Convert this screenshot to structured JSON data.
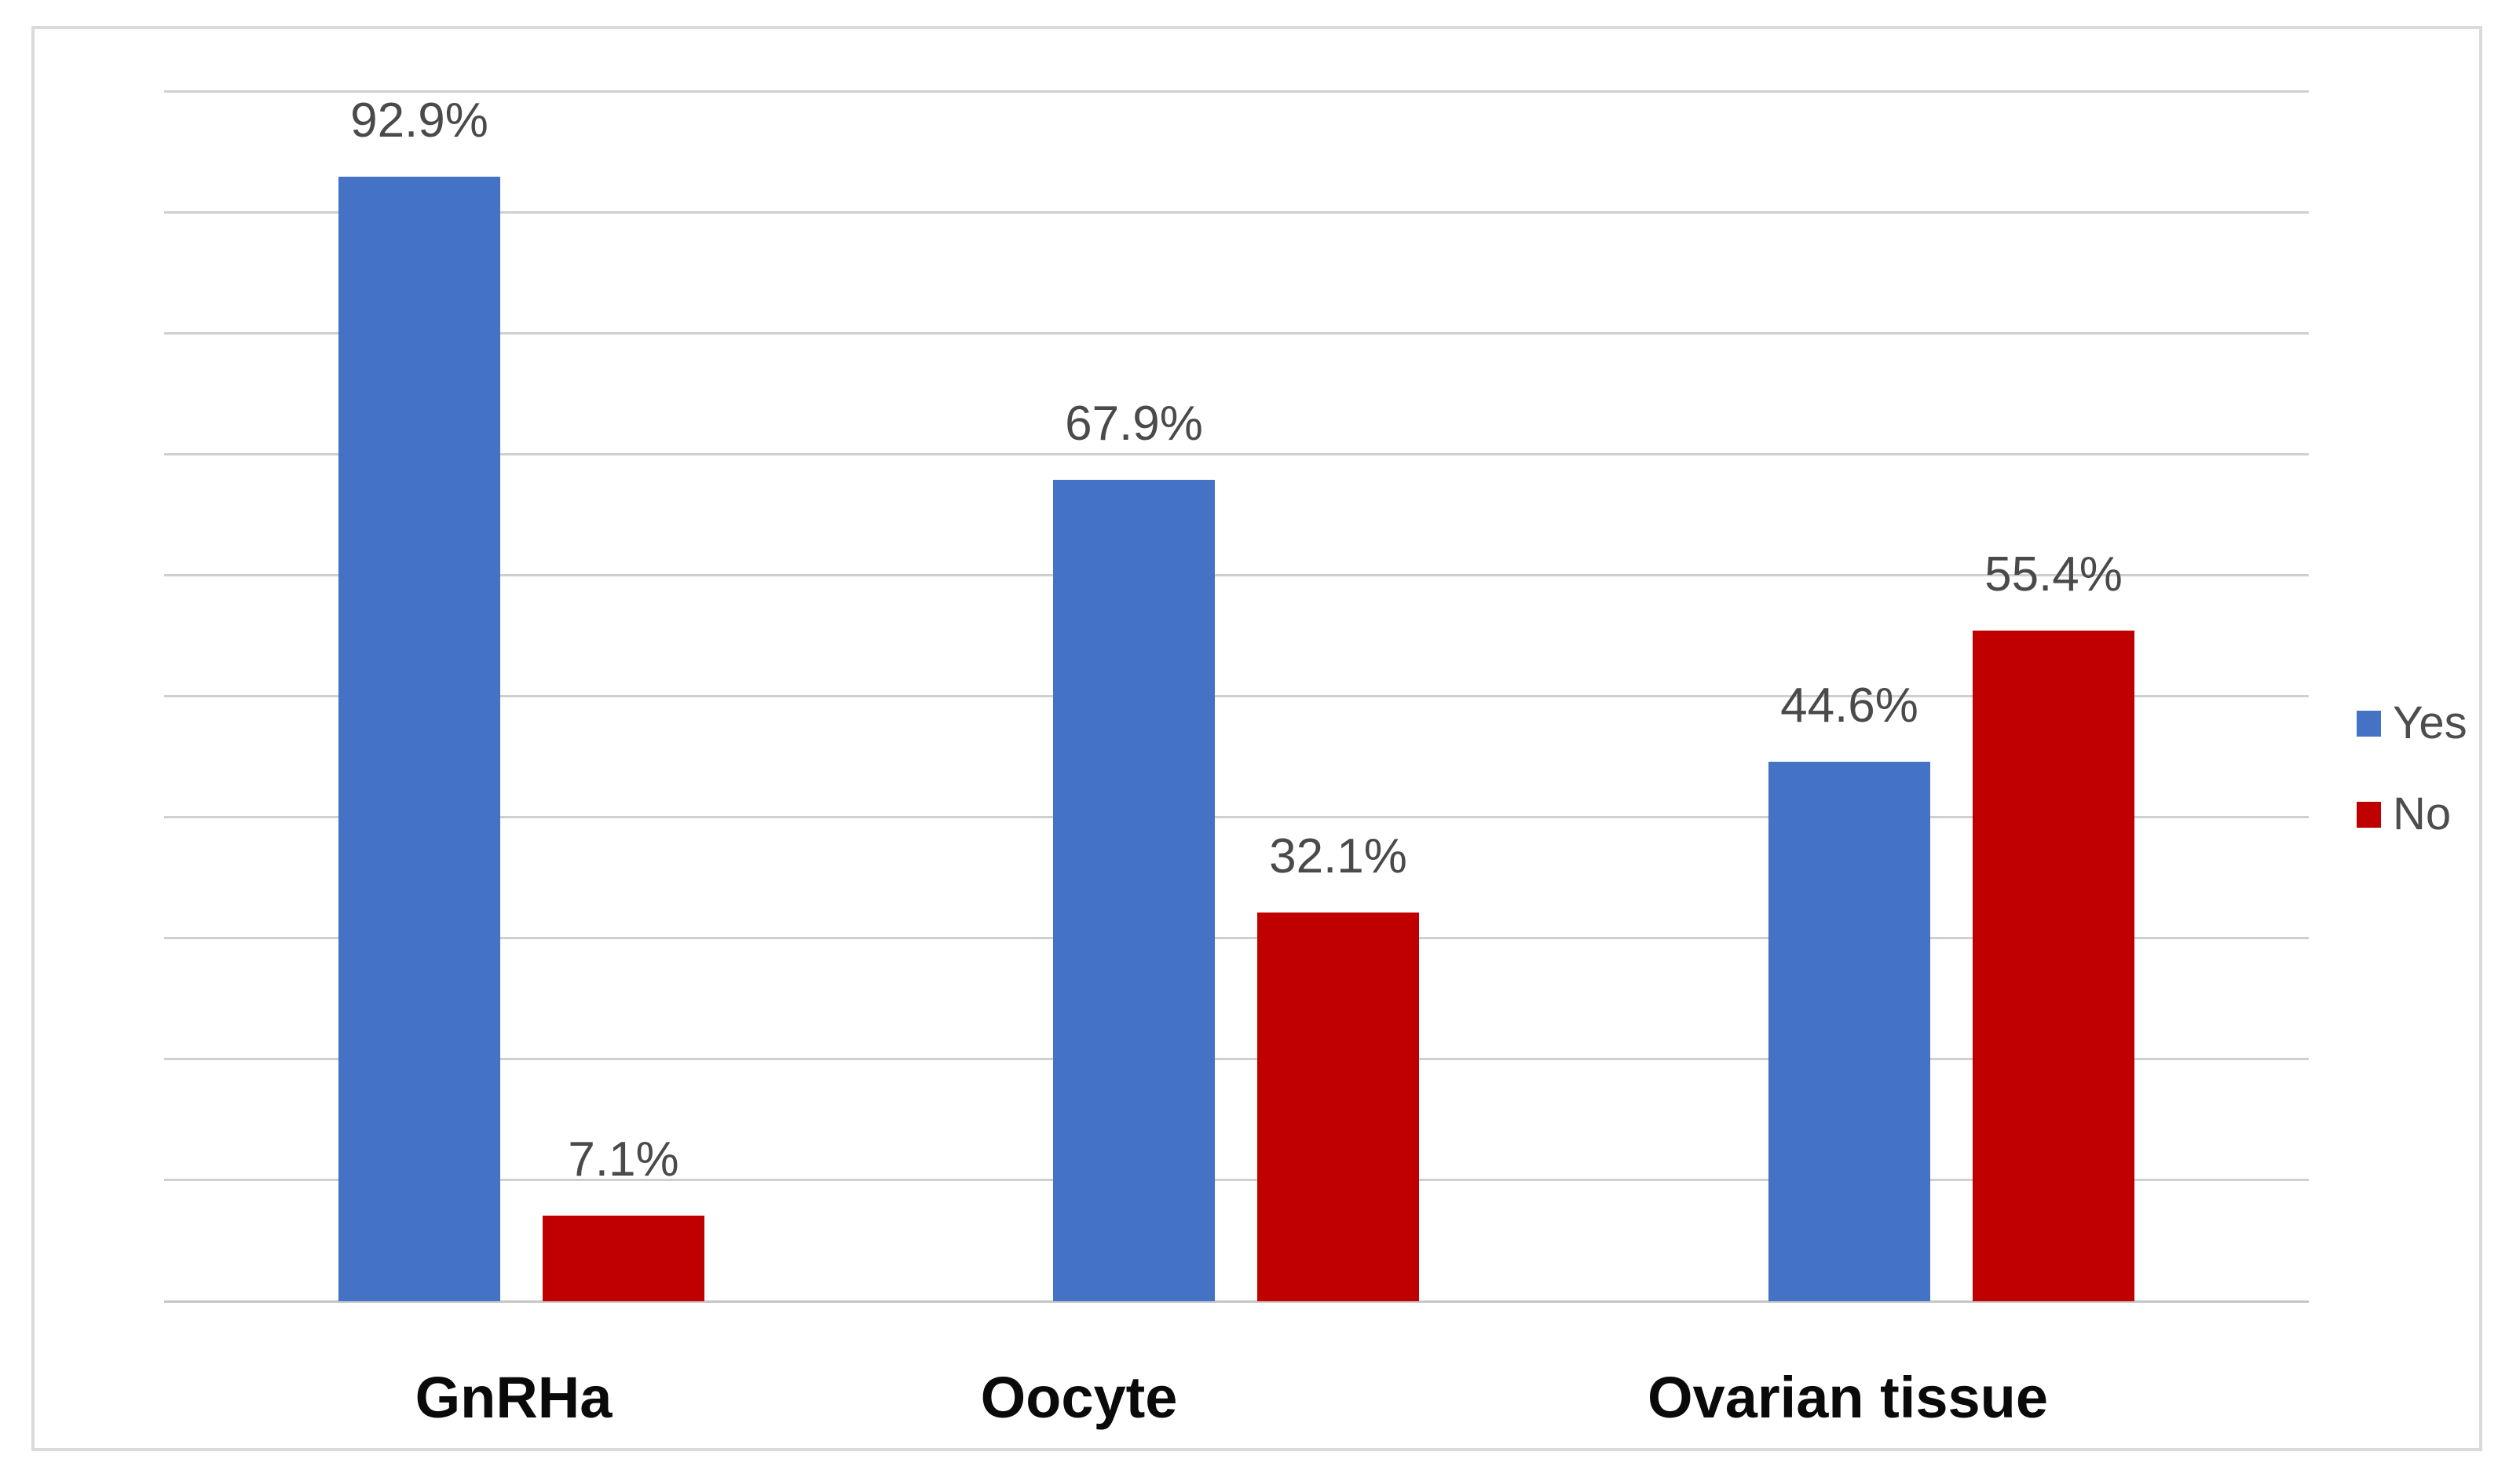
{
  "figure": {
    "background_color": "#ffffff",
    "border_color": "#dadada"
  },
  "colors": {
    "series_yes": "#4472C4",
    "series_no": "#C00000",
    "gridline": "#cfcfcf",
    "axis_line": "#c6c6c6",
    "data_label": "#4a4a4a",
    "category_label": "#0a0a0a",
    "legend_label": "#4d4d4d"
  },
  "chart_data": {
    "type": "bar",
    "title": "",
    "xlabel": "",
    "ylabel": "",
    "categories": [
      "GnRHa",
      "Oocyte",
      "Ovarian tissue"
    ],
    "series": [
      {
        "name": "Yes",
        "color": "#4472C4",
        "values": [
          92.9,
          67.9,
          44.6
        ],
        "labels": [
          "92.9%",
          "67.9%",
          "44.6%"
        ]
      },
      {
        "name": "No",
        "color": "#C00000",
        "values": [
          7.1,
          32.1,
          55.4
        ],
        "labels": [
          "7.1%",
          "32.1%",
          "55.4%"
        ]
      }
    ],
    "ylim": [
      0,
      100
    ],
    "gridline_step": 10,
    "grid": true,
    "y_axis_tick_labels_visible": false,
    "data_label_suffix": "%",
    "legend_position": "right"
  },
  "legend": {
    "items": [
      {
        "label": "Yes",
        "color": "#4472C4"
      },
      {
        "label": "No",
        "color": "#C00000"
      }
    ]
  }
}
